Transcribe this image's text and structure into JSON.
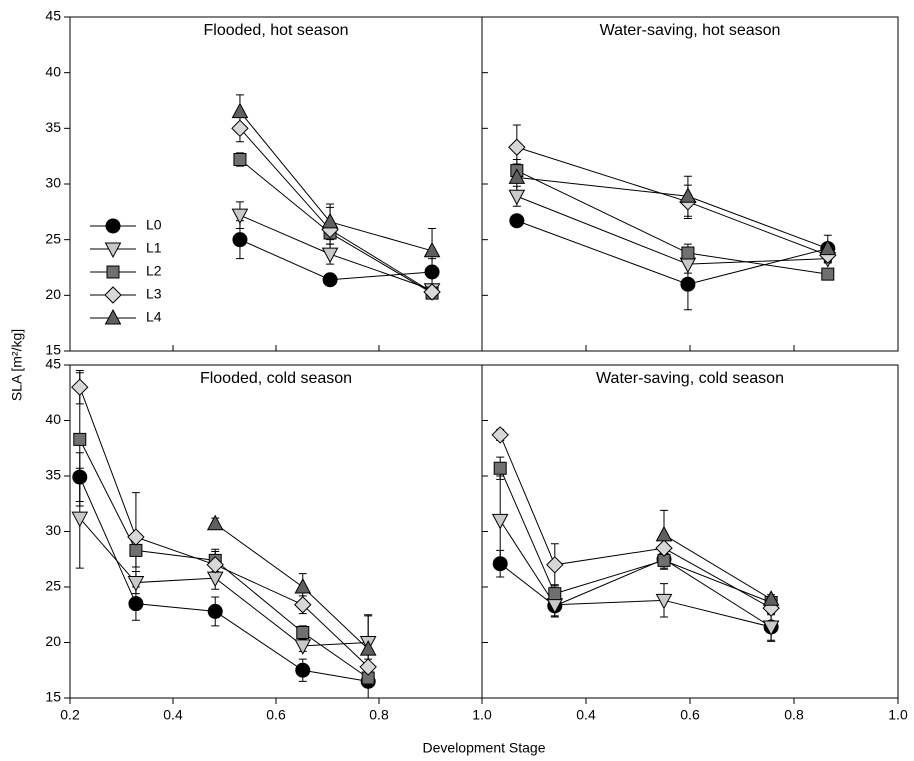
{
  "xlabel": "Development Stage",
  "ylabel": "SLA [m²/kg]",
  "chart_data": [
    {
      "type": "line",
      "title": "Flooded, hot season",
      "legend": "left",
      "x": [
        0.53,
        0.705,
        0.903
      ],
      "xlim": [
        0.2,
        1.0
      ],
      "xticks": [
        0.2,
        0.4,
        0.6,
        0.8,
        1.0
      ],
      "xtick_labels": false,
      "ylim": [
        15,
        45
      ],
      "yticks": [
        15,
        20,
        25,
        30,
        35,
        40,
        45
      ],
      "ytick_labels": true,
      "series": [
        {
          "name": "L0",
          "color": "#000000",
          "marker": "circle",
          "values": [
            25.0,
            21.4,
            22.1
          ],
          "errors": [
            1.7,
            0.5,
            1.2
          ]
        },
        {
          "name": "L1",
          "color": "#c8c8c8",
          "marker": "triangle-down",
          "values": [
            27.2,
            23.7,
            20.5
          ],
          "errors": [
            1.2,
            0.9,
            0.5
          ]
        },
        {
          "name": "L2",
          "color": "#707070",
          "marker": "square",
          "values": [
            32.2,
            25.6,
            20.2
          ],
          "errors": [
            0.6,
            1.0,
            0.5
          ]
        },
        {
          "name": "L3",
          "color": "#d8d8d8",
          "marker": "diamond",
          "values": [
            35.0,
            25.9,
            20.3
          ],
          "errors": [
            1.2,
            2.0,
            0.5
          ]
        },
        {
          "name": "L4",
          "color": "#606060",
          "marker": "triangle-up",
          "values": [
            36.5,
            26.6,
            24.0
          ],
          "errors": [
            1.5,
            1.6,
            2.0
          ]
        }
      ]
    },
    {
      "type": "line",
      "title": "Water-saving, hot season",
      "x": [
        0.267,
        0.596,
        0.865
      ],
      "xlim": [
        0.2,
        1.0
      ],
      "xticks": [
        0.2,
        0.4,
        0.6,
        0.8,
        1.0
      ],
      "xtick_labels": false,
      "ylim": [
        15,
        45
      ],
      "yticks": [
        15,
        20,
        25,
        30,
        35,
        40,
        45
      ],
      "ytick_labels": false,
      "series": [
        {
          "color": "#000000",
          "marker": "circle",
          "values": [
            26.7,
            21.0,
            24.2
          ],
          "errors": [
            0.3,
            2.3,
            0.5
          ]
        },
        {
          "color": "#c8c8c8",
          "marker": "triangle-down",
          "values": [
            28.9,
            22.8,
            23.3
          ],
          "errors": [
            0.9,
            0.8,
            0.4
          ]
        },
        {
          "color": "#707070",
          "marker": "square",
          "values": [
            31.2,
            23.8,
            21.9
          ],
          "errors": [
            1.0,
            0.8,
            0.4
          ]
        },
        {
          "color": "#d8d8d8",
          "marker": "diamond",
          "values": [
            33.3,
            28.4,
            23.6
          ],
          "errors": [
            2.0,
            1.5,
            0.5
          ]
        },
        {
          "color": "#606060",
          "marker": "triangle-up",
          "values": [
            30.6,
            28.9,
            24.2
          ],
          "errors": [
            1.2,
            1.8,
            1.2
          ]
        }
      ]
    },
    {
      "type": "line",
      "title": "Flooded, cold season",
      "x": [
        0.219,
        0.328,
        0.482,
        0.652,
        0.779
      ],
      "xlim": [
        0.2,
        1.0
      ],
      "xticks": [
        0.2,
        0.4,
        0.6,
        0.8,
        {
          "value": 1.0,
          "label": "1.0"
        }
      ],
      "xtick_labels": true,
      "ylim": [
        15,
        45
      ],
      "yticks": [
        15,
        20,
        25,
        30,
        35,
        40,
        45
      ],
      "ytick_labels": true,
      "series": [
        {
          "color": "#000000",
          "marker": "circle",
          "values": [
            34.9,
            23.5,
            22.8,
            17.5,
            16.5
          ],
          "errors": [
            2.2,
            1.5,
            1.3,
            1.0,
            1.5
          ]
        },
        {
          "color": "#c8c8c8",
          "marker": "triangle-down",
          "values": [
            31.2,
            25.4,
            25.8,
            19.7,
            20.0
          ],
          "errors": [
            4.5,
            1.0,
            1.0,
            0.5,
            2.5
          ]
        },
        {
          "color": "#707070",
          "marker": "square",
          "values": [
            38.3,
            28.3,
            27.4,
            20.9,
            16.8
          ],
          "errors": [
            6.0,
            1.5,
            1.0,
            0.6,
            0.6
          ]
        },
        {
          "color": "#d8d8d8",
          "marker": "diamond",
          "values": [
            43.0,
            29.5,
            27.0,
            23.4,
            17.8
          ],
          "errors": [
            1.5,
            4.0,
            1.2,
            0.8,
            0.7
          ]
        },
        {
          "color": "#606060",
          "marker": "triangle-up",
          "values": [
            null,
            null,
            30.7,
            25.0,
            19.4
          ],
          "errors": [
            null,
            null,
            0.5,
            1.2,
            3.0
          ]
        }
      ]
    },
    {
      "type": "line",
      "title": "Water-saving, cold season",
      "x": [
        0.235,
        0.34,
        0.55,
        0.756
      ],
      "xlim": [
        0.2,
        1.0
      ],
      "xticks": [
        0.4,
        0.6,
        0.8,
        {
          "value": 1.0,
          "label": "1.0"
        }
      ],
      "xtick_labels": true,
      "ylim": [
        15,
        45
      ],
      "yticks": [
        15,
        20,
        25,
        30,
        35,
        40,
        45
      ],
      "ytick_labels": false,
      "series": [
        {
          "color": "#000000",
          "marker": "circle",
          "values": [
            27.1,
            23.3,
            27.5,
            21.4
          ],
          "errors": [
            1.2,
            1.0,
            0.8,
            1.2
          ]
        },
        {
          "color": "#c8c8c8",
          "marker": "triangle-down",
          "values": [
            31.0,
            23.4,
            23.8,
            21.4
          ],
          "errors": [
            4.0,
            1.0,
            1.5,
            1.3
          ]
        },
        {
          "color": "#707070",
          "marker": "square",
          "values": [
            35.7,
            24.4,
            27.4,
            23.6
          ],
          "errors": [
            1.0,
            0.8,
            0.8,
            0.4
          ]
        },
        {
          "color": "#d8d8d8",
          "marker": "diamond",
          "values": [
            38.7,
            27.0,
            28.5,
            23.1
          ],
          "errors": [
            0.5,
            1.9,
            1.0,
            0.6
          ]
        },
        {
          "color": "#606060",
          "marker": "triangle-up",
          "values": [
            null,
            null,
            29.7,
            23.9
          ],
          "errors": [
            null,
            null,
            2.2,
            0.4
          ]
        }
      ]
    }
  ]
}
